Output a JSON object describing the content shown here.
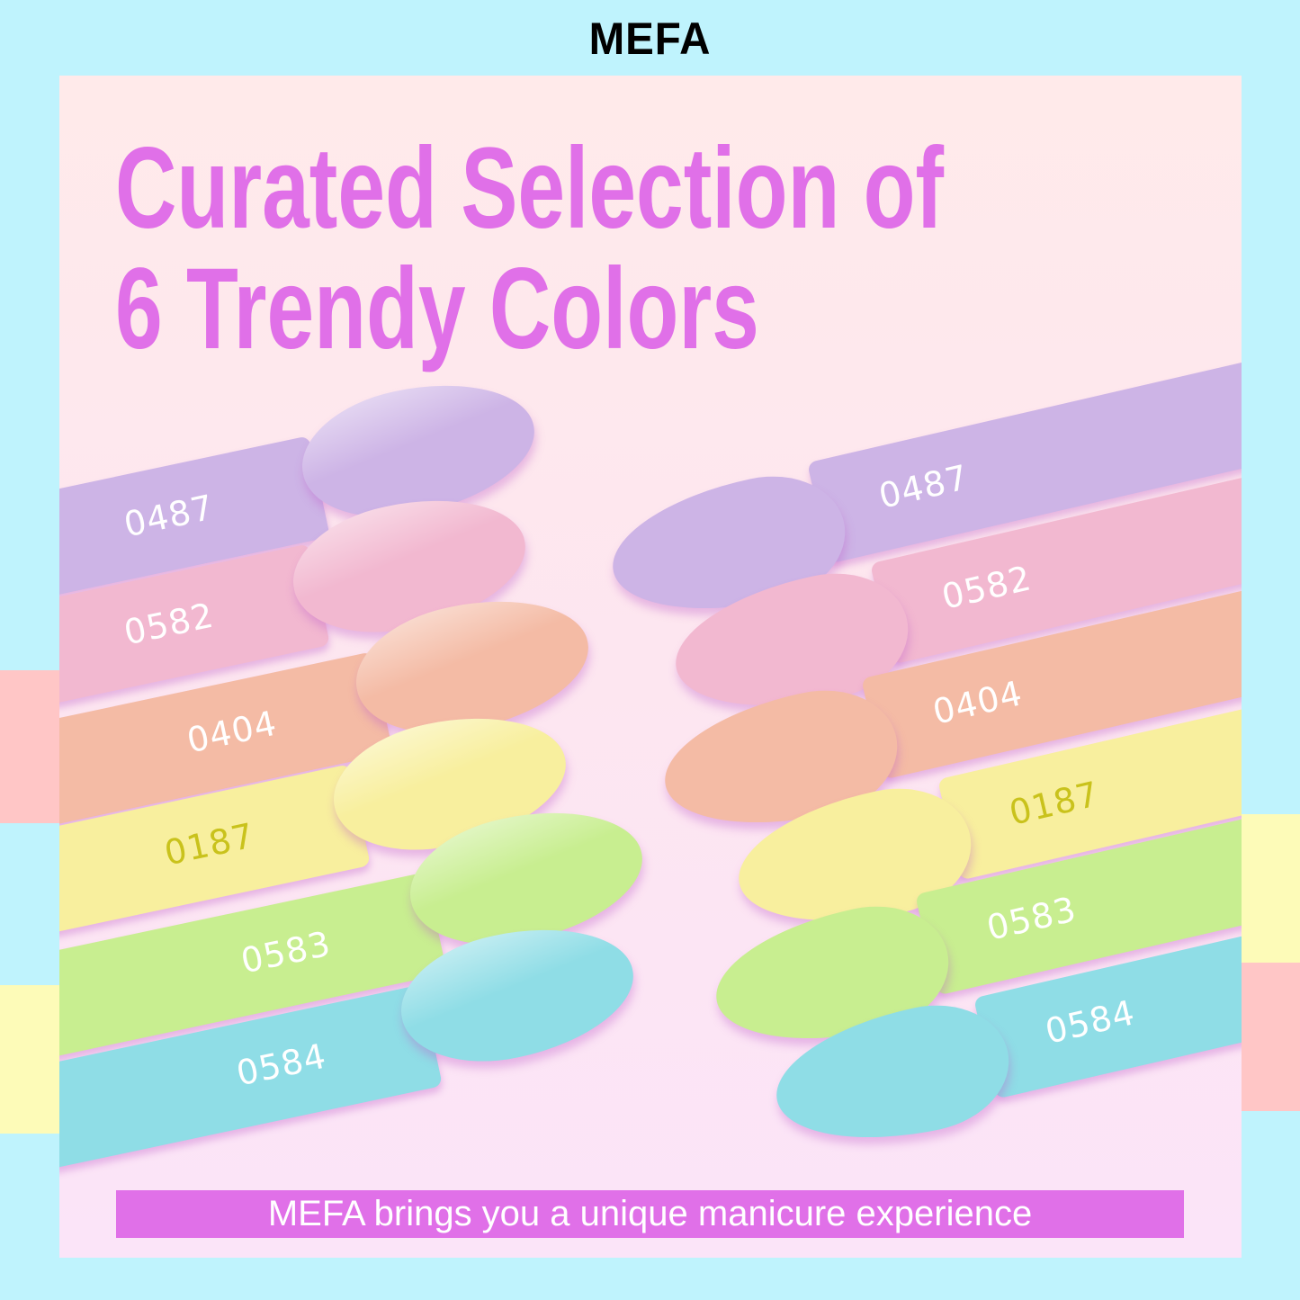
{
  "brand": "MEFA",
  "title": {
    "line1": "Curated Selection of",
    "line2": "6 Trendy Colors"
  },
  "tagline": "MEFA brings you a unique manicure experience",
  "colors": [
    {
      "code": "0487",
      "hex": "#cdb4e6",
      "text": "#ffffff"
    },
    {
      "code": "0582",
      "hex": "#f2b8d0",
      "text": "#ffffff"
    },
    {
      "code": "0404",
      "hex": "#f4bba5",
      "text": "#ffffff"
    },
    {
      "code": "0187",
      "hex": "#f8ef9e",
      "text": "#c9c21c"
    },
    {
      "code": "0583",
      "hex": "#c8ee90",
      "text": "#ffffff"
    },
    {
      "code": "0584",
      "hex": "#8fdde6",
      "text": "#ffffff"
    }
  ]
}
